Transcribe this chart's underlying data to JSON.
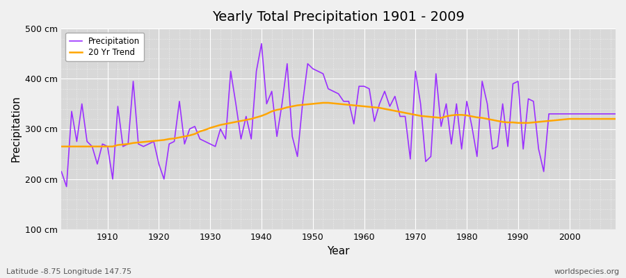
{
  "title": "Yearly Total Precipitation 1901 - 2009",
  "xlabel": "Year",
  "ylabel": "Precipitation",
  "subtitle_left": "Latitude -8.75 Longitude 147.75",
  "subtitle_right": "worldspecies.org",
  "ylim": [
    100,
    500
  ],
  "xlim": [
    1901,
    2009
  ],
  "yticks": [
    100,
    200,
    300,
    400,
    500
  ],
  "ytick_labels": [
    "100 cm",
    "200 cm",
    "300 cm",
    "400 cm",
    "500 cm"
  ],
  "xticks": [
    1910,
    1920,
    1930,
    1940,
    1950,
    1960,
    1970,
    1980,
    1990,
    2000
  ],
  "precip_color": "#9B30FF",
  "trend_color": "#FFA500",
  "fig_bg_color": "#F0F0F0",
  "plot_bg_color": "#D8D8D8",
  "grid_color": "#FFFFFF",
  "years": [
    1901,
    1902,
    1903,
    1904,
    1905,
    1906,
    1907,
    1908,
    1909,
    1910,
    1911,
    1912,
    1913,
    1914,
    1915,
    1916,
    1917,
    1918,
    1919,
    1920,
    1921,
    1922,
    1923,
    1924,
    1925,
    1926,
    1927,
    1928,
    1929,
    1930,
    1931,
    1932,
    1933,
    1934,
    1935,
    1936,
    1937,
    1938,
    1939,
    1940,
    1941,
    1942,
    1943,
    1944,
    1945,
    1946,
    1947,
    1948,
    1949,
    1950,
    1951,
    1952,
    1953,
    1954,
    1955,
    1956,
    1957,
    1958,
    1959,
    1960,
    1961,
    1962,
    1963,
    1964,
    1965,
    1966,
    1967,
    1968,
    1969,
    1970,
    1971,
    1972,
    1973,
    1974,
    1975,
    1976,
    1977,
    1978,
    1979,
    1980,
    1981,
    1982,
    1983,
    1984,
    1985,
    1986,
    1987,
    1988,
    1989,
    1990,
    1991,
    1992,
    1993,
    1994,
    1995,
    1996,
    1997,
    1998,
    1999,
    2000,
    2001,
    2002,
    2003,
    2004,
    2005,
    2006,
    2007,
    2008,
    2009
  ],
  "precip": [
    215,
    185,
    335,
    275,
    350,
    275,
    265,
    230,
    270,
    265,
    200,
    345,
    265,
    270,
    395,
    270,
    265,
    270,
    275,
    230,
    200,
    270,
    275,
    355,
    270,
    300,
    305,
    280,
    275,
    270,
    265,
    300,
    280,
    415,
    350,
    280,
    325,
    280,
    415,
    470,
    350,
    375,
    285,
    350,
    430,
    285,
    245,
    350,
    430,
    420,
    415,
    410,
    380,
    375,
    370,
    355,
    355,
    310,
    385,
    385,
    380,
    315,
    350,
    375,
    345,
    365,
    325,
    325,
    240,
    415,
    350,
    235,
    245,
    410,
    305,
    350,
    270,
    350,
    260,
    355,
    305,
    245,
    395,
    350,
    260,
    265,
    350,
    265,
    390,
    395,
    260,
    360,
    355,
    260,
    215,
    330,
    330,
    330,
    330,
    330,
    330,
    330,
    330,
    330,
    330,
    330,
    330,
    330,
    330
  ],
  "trend": [
    265,
    265,
    265,
    265,
    265,
    265,
    265,
    265,
    265,
    265,
    265,
    268,
    269,
    270,
    272,
    273,
    274,
    275,
    276,
    277,
    278,
    280,
    281,
    283,
    285,
    287,
    290,
    295,
    298,
    302,
    305,
    308,
    310,
    312,
    314,
    316,
    318,
    320,
    323,
    326,
    330,
    335,
    338,
    340,
    343,
    345,
    347,
    348,
    349,
    350,
    351,
    352,
    352,
    351,
    350,
    349,
    348,
    347,
    346,
    345,
    344,
    343,
    342,
    340,
    338,
    336,
    334,
    332,
    330,
    328,
    326,
    325,
    324,
    323,
    322,
    325,
    327,
    328,
    328,
    327,
    325,
    323,
    322,
    320,
    318,
    316,
    314,
    313,
    313,
    312,
    312,
    312,
    313,
    314,
    315,
    316,
    317,
    318,
    319,
    320,
    320,
    320,
    320,
    320,
    320,
    320,
    320,
    320,
    320
  ]
}
